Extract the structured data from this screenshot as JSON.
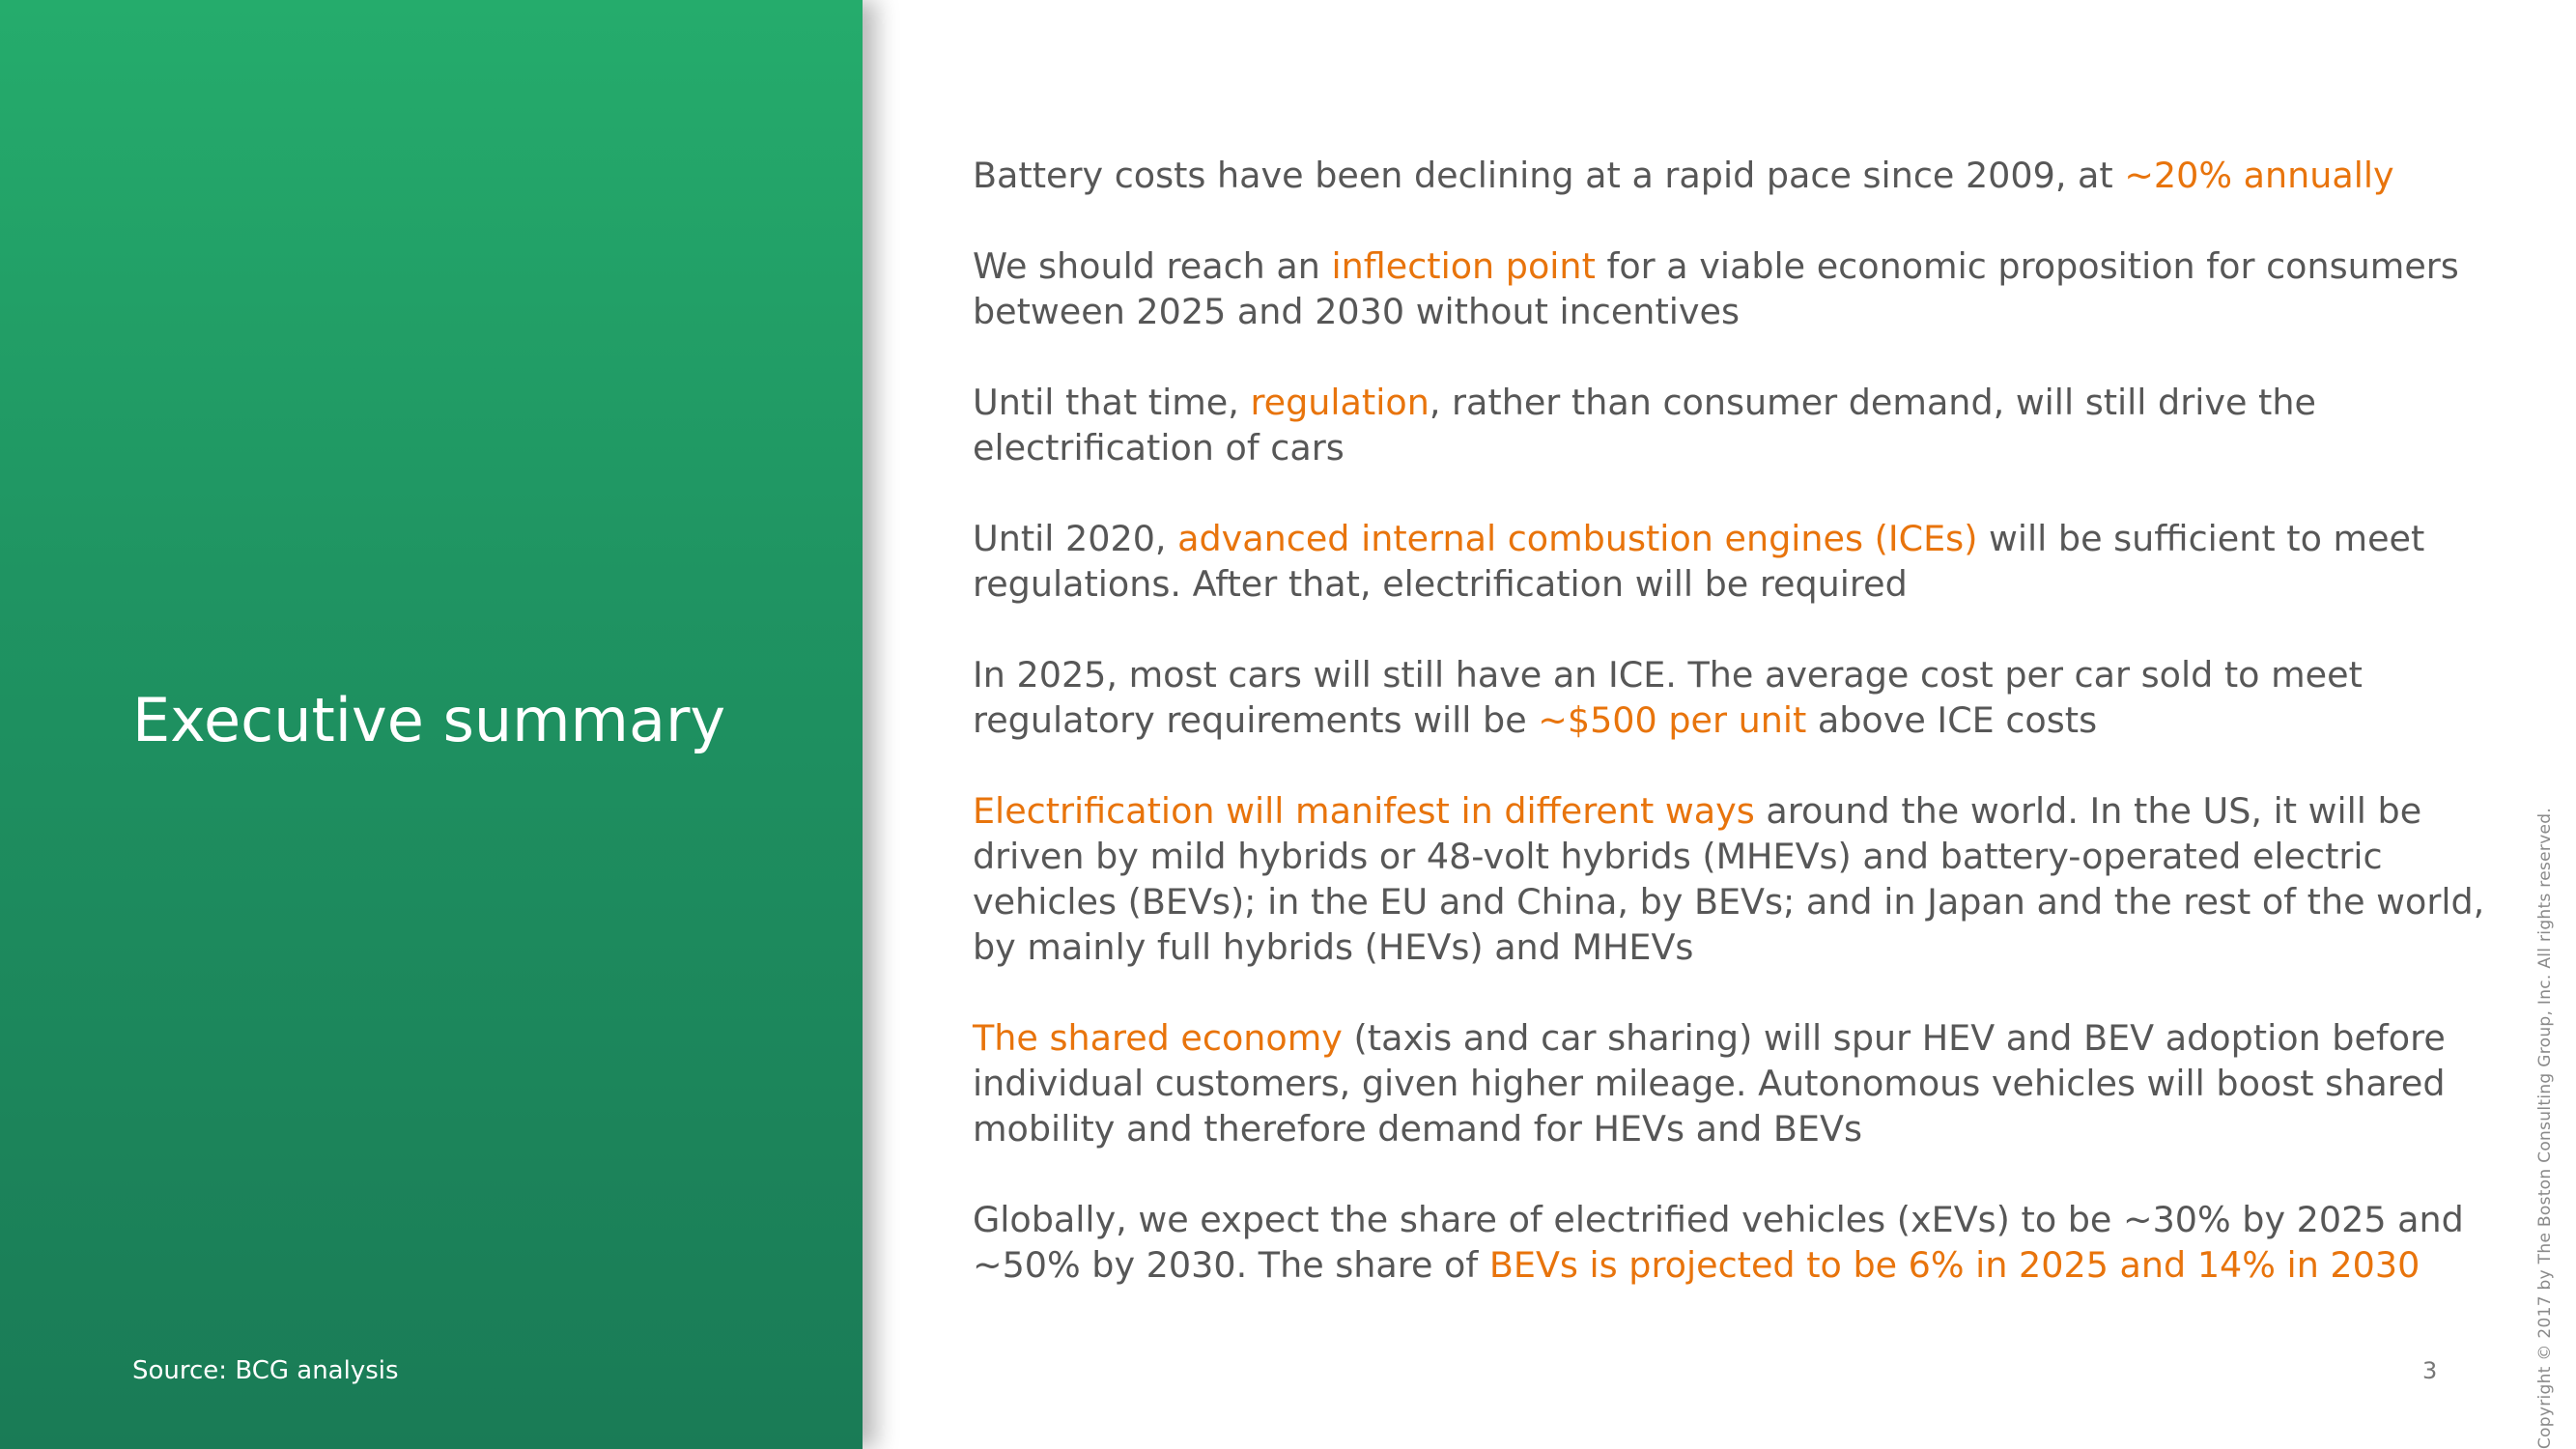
{
  "sidebar": {
    "title": "Executive summary",
    "source": "Source: BCG analysis"
  },
  "colors": {
    "panel_green": "#1f9462",
    "highlight_orange": "#e8740c",
    "body_text": "#575757"
  },
  "paragraphs": [
    {
      "lines": [
        [
          "Battery costs have been declining at a rapid pace since 2009, at ",
          "~20% annually",
          ""
        ]
      ]
    },
    {
      "lines": [
        [
          "We should reach an ",
          "inflection point",
          " for a viable economic proposition for consumers"
        ],
        [
          "between 2025 and 2030 without incentives",
          "",
          ""
        ]
      ]
    },
    {
      "lines": [
        [
          "Until that time, ",
          "regulation",
          ", rather than consumer demand, will still drive the"
        ],
        [
          "electrification of cars",
          "",
          ""
        ]
      ]
    },
    {
      "lines": [
        [
          "Until 2020, ",
          "advanced internal combustion engines (ICEs)",
          " will be sufficient to meet"
        ],
        [
          "regulations. After that, electrification will be required",
          "",
          ""
        ]
      ]
    },
    {
      "lines": [
        [
          "In 2025, most cars will still have an ICE. The average cost per car sold to meet",
          "",
          ""
        ],
        [
          "regulatory requirements will be ",
          "~$500 per unit",
          " above ICE costs"
        ]
      ]
    },
    {
      "lines": [
        [
          "",
          "Electrification will manifest in different ways",
          " around the world. In the US, it will be"
        ],
        [
          "driven by mild hybrids or 48-volt hybrids (MHEVs) and battery-operated electric",
          "",
          ""
        ],
        [
          "vehicles (BEVs); in the EU and China, by BEVs; and in Japan and the rest of the world,",
          "",
          ""
        ],
        [
          "by mainly full hybrids (HEVs) and MHEVs",
          "",
          ""
        ]
      ]
    },
    {
      "lines": [
        [
          "",
          "The shared economy",
          " (taxis and car sharing) will spur HEV and BEV adoption before"
        ],
        [
          "individual customers, given higher mileage. Autonomous vehicles will boost shared",
          "",
          ""
        ],
        [
          "mobility and therefore demand for HEVs and BEVs",
          "",
          ""
        ]
      ]
    },
    {
      "lines": [
        [
          "Globally, we expect the share of electrified vehicles (xEVs) to be ~30% by 2025 and",
          "",
          ""
        ],
        [
          "~50% by 2030. The share of ",
          "BEVs is projected to be 6% in 2025 and 14% in 2030",
          ""
        ]
      ]
    }
  ],
  "footer": {
    "page_number": "3",
    "copyright": "Copyright © 2017 by The Boston Consulting Group, Inc. All rights reserved."
  }
}
